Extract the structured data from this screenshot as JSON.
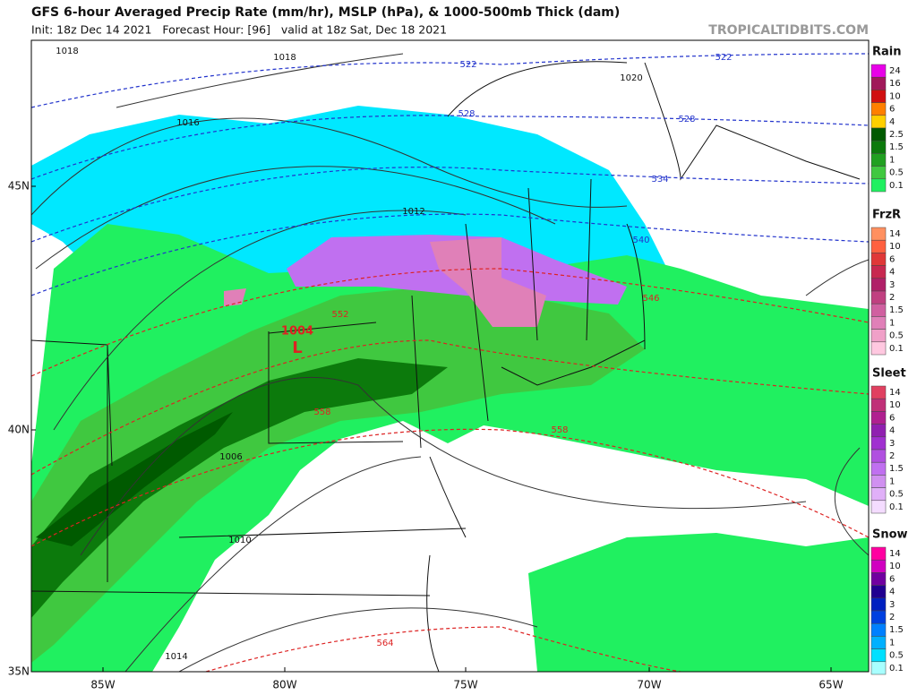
{
  "header": {
    "title": "GFS 6-hour Averaged Precip Rate (mm/hr), MSLP (hPa), & 1000-500mb Thick (dam)",
    "subtitle": "Init: 18z Dec 14 2021   Forecast Hour: [96]   valid at 18z Sat, Dec 18 2021",
    "site": "TROPICALTIDBITS.COM"
  },
  "map": {
    "lat_labels": [
      "45N",
      "40N",
      "35N"
    ],
    "lon_labels": [
      "85W",
      "80W",
      "75W",
      "70W",
      "65W"
    ],
    "isobar_labels": [
      "1018",
      "1018",
      "1016",
      "1020",
      "1012",
      "1006",
      "1010",
      "1014"
    ],
    "thickness_labels": [
      "522",
      "522",
      "528",
      "528",
      "534",
      "540",
      "546",
      "552",
      "558",
      "558",
      "564"
    ],
    "low": {
      "pressure": "1004",
      "symbol": "L"
    }
  },
  "legend": [
    {
      "title": "Rain",
      "levels": [
        24,
        16,
        10,
        6,
        4,
        2.5,
        1.5,
        1,
        0.5,
        0.1
      ],
      "colors": [
        "#e800e8",
        "#a0185a",
        "#d01010",
        "#ff8000",
        "#ffd000",
        "#005a00",
        "#0c7a0c",
        "#20a020",
        "#40c840",
        "#20f060"
      ]
    },
    {
      "title": "FrzR",
      "levels": [
        14,
        10,
        6,
        4,
        3,
        2,
        1.5,
        1,
        0.5,
        0.1
      ],
      "colors": [
        "#ff9060",
        "#ff6040",
        "#e03838",
        "#c82850",
        "#b02068",
        "#c04080",
        "#d060a0",
        "#e080b8",
        "#f0a0c8",
        "#ffc8e0"
      ]
    },
    {
      "title": "Sleet",
      "levels": [
        14,
        10,
        6,
        4,
        3,
        2,
        1.5,
        1,
        0.5,
        0.1
      ],
      "colors": [
        "#e04060",
        "#c03078",
        "#b02090",
        "#9020b0",
        "#a030d0",
        "#b050e0",
        "#c070f0",
        "#d090f0",
        "#e0b0f8",
        "#f4dcff"
      ]
    },
    {
      "title": "Snow",
      "levels": [
        14,
        10,
        6,
        4,
        3,
        2,
        1.5,
        1,
        0.5,
        0.1
      ],
      "colors": [
        "#ff00a0",
        "#d000c0",
        "#7000a0",
        "#200090",
        "#0020c0",
        "#0040e0",
        "#0080ff",
        "#00b0ff",
        "#00e0ff",
        "#a8ffff"
      ]
    }
  ]
}
